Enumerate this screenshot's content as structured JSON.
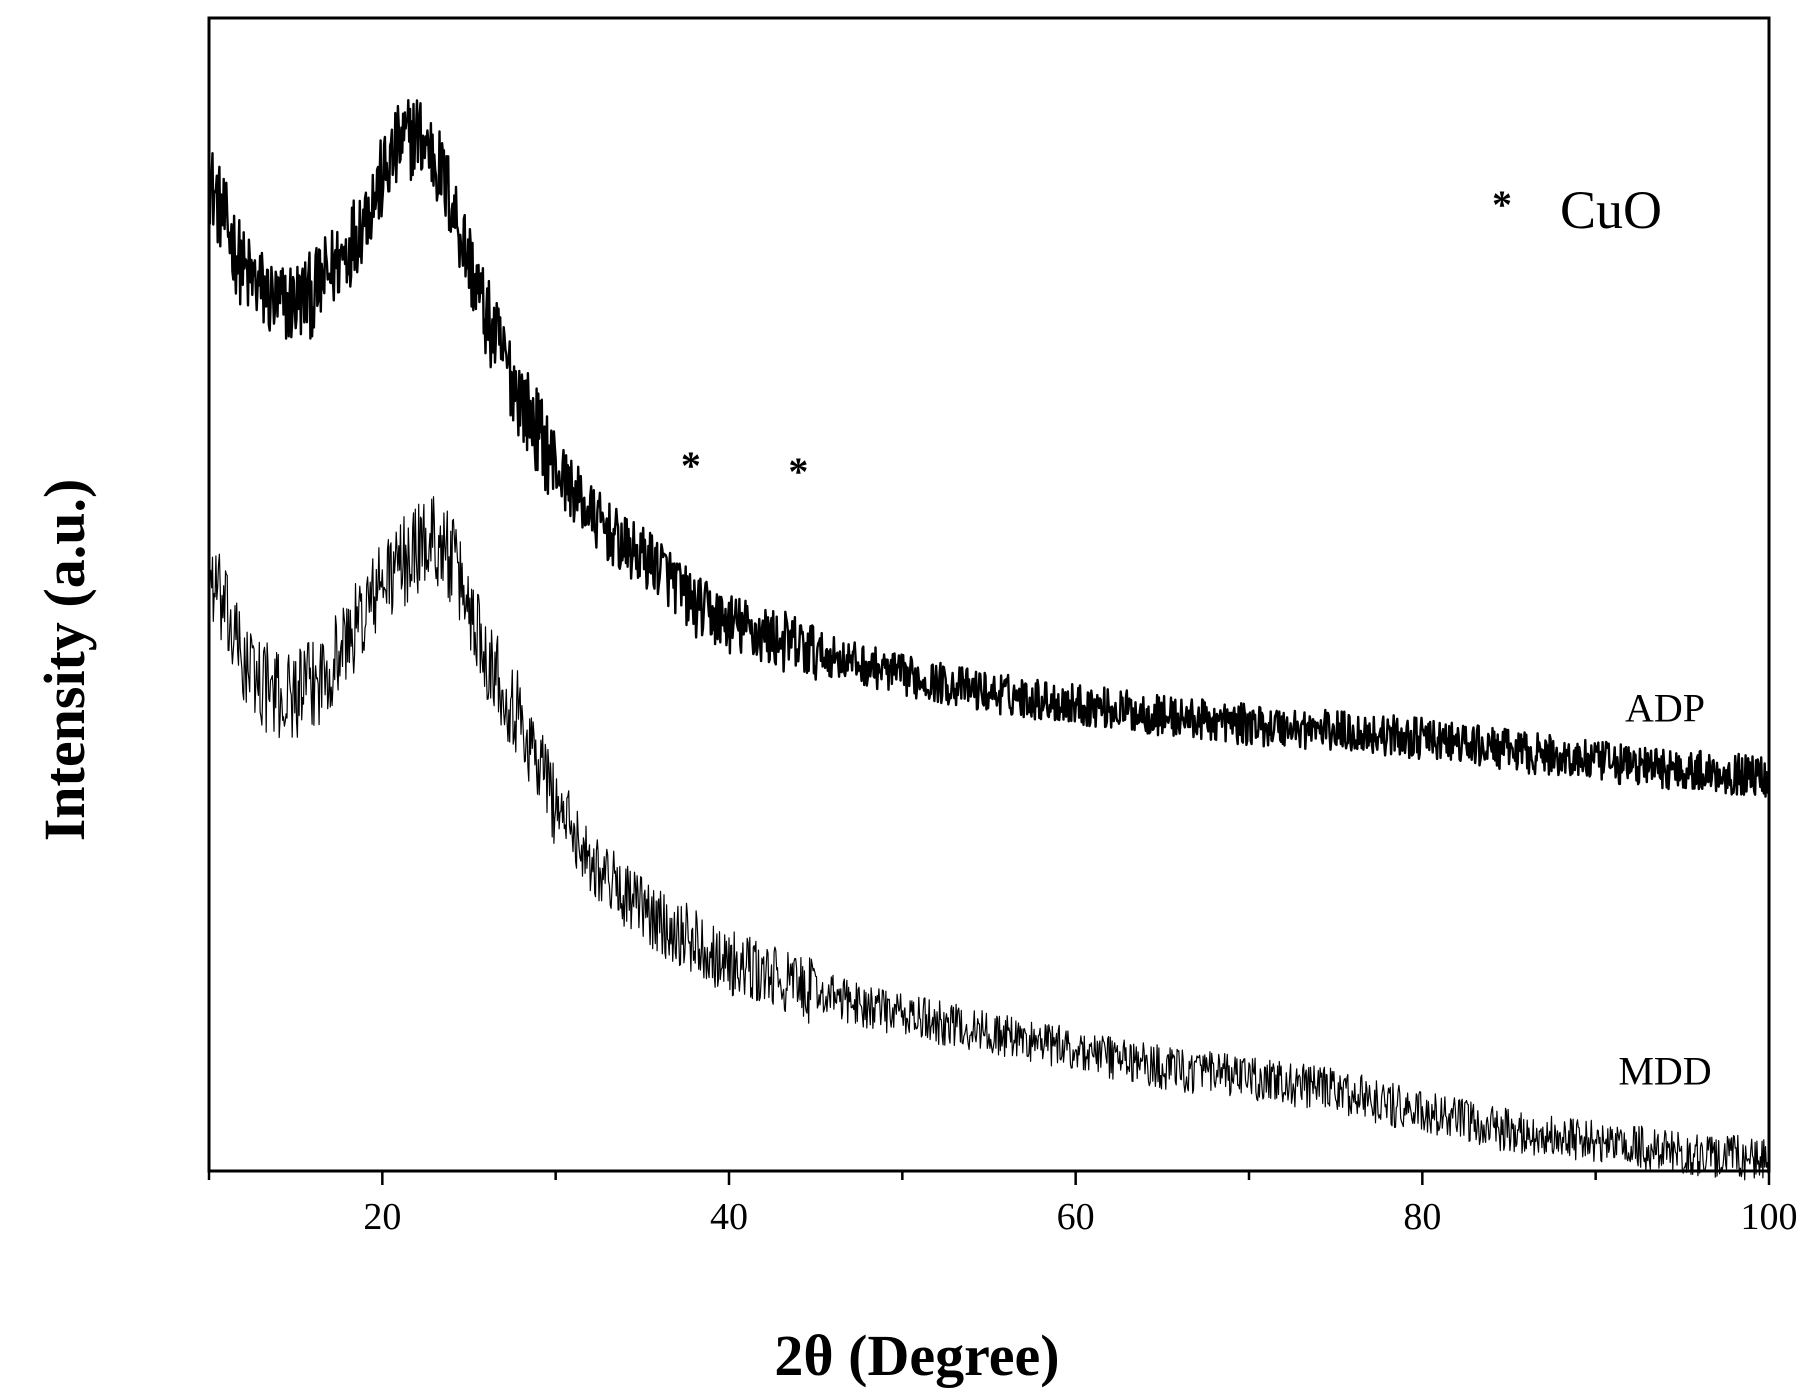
{
  "chart_data": {
    "type": "line",
    "xlabel": "2θ (Degree)",
    "ylabel": "Intensity (a.u.)",
    "xlim": [
      10,
      100
    ],
    "x_ticks": [
      20,
      40,
      60,
      80,
      100
    ],
    "y_tick_labels_shown": false,
    "grid": false,
    "legend": {
      "symbol": "*",
      "text": "CuO",
      "placement": "top-right"
    },
    "series": [
      {
        "name": "ADP",
        "stroke_width": 2.4,
        "noise": 0.03,
        "points": [
          [
            10,
            0.86
          ],
          [
            12,
            0.78
          ],
          [
            14,
            0.75
          ],
          [
            16,
            0.76
          ],
          [
            18,
            0.8
          ],
          [
            20,
            0.86
          ],
          [
            21,
            0.89
          ],
          [
            22,
            0.9
          ],
          [
            23,
            0.88
          ],
          [
            24,
            0.84
          ],
          [
            25,
            0.79
          ],
          [
            26,
            0.74
          ],
          [
            28,
            0.67
          ],
          [
            30,
            0.61
          ],
          [
            32,
            0.57
          ],
          [
            34,
            0.54
          ],
          [
            36,
            0.525
          ],
          [
            38,
            0.49
          ],
          [
            40,
            0.475
          ],
          [
            45,
            0.45
          ],
          [
            50,
            0.43
          ],
          [
            55,
            0.415
          ],
          [
            60,
            0.405
          ],
          [
            65,
            0.395
          ],
          [
            70,
            0.387
          ],
          [
            75,
            0.382
          ],
          [
            80,
            0.375
          ],
          [
            85,
            0.365
          ],
          [
            90,
            0.355
          ],
          [
            95,
            0.348
          ],
          [
            100,
            0.342
          ]
        ]
      },
      {
        "name": "MDD",
        "stroke_width": 1.2,
        "noise": 0.032,
        "points": [
          [
            10,
            0.52
          ],
          [
            12,
            0.44
          ],
          [
            14,
            0.41
          ],
          [
            16,
            0.42
          ],
          [
            18,
            0.46
          ],
          [
            20,
            0.51
          ],
          [
            22,
            0.54
          ],
          [
            23,
            0.55
          ],
          [
            24,
            0.53
          ],
          [
            25,
            0.49
          ],
          [
            26,
            0.45
          ],
          [
            28,
            0.39
          ],
          [
            30,
            0.32
          ],
          [
            32,
            0.27
          ],
          [
            34,
            0.24
          ],
          [
            36,
            0.215
          ],
          [
            38,
            0.2
          ],
          [
            40,
            0.18
          ],
          [
            45,
            0.155
          ],
          [
            50,
            0.135
          ],
          [
            55,
            0.12
          ],
          [
            60,
            0.105
          ],
          [
            65,
            0.09
          ],
          [
            70,
            0.08
          ],
          [
            75,
            0.07
          ],
          [
            80,
            0.05
          ],
          [
            85,
            0.035
          ],
          [
            90,
            0.025
          ],
          [
            95,
            0.015
          ],
          [
            100,
            0.01
          ]
        ]
      }
    ],
    "series_labels": [
      {
        "text": "ADP",
        "x": 94,
        "y": 0.39
      },
      {
        "text": "MDD",
        "x": 94,
        "y": 0.075
      }
    ],
    "annotations": [
      {
        "text": "*",
        "x": 37.8,
        "y": 0.6
      },
      {
        "text": "*",
        "x": 44,
        "y": 0.595
      }
    ]
  }
}
